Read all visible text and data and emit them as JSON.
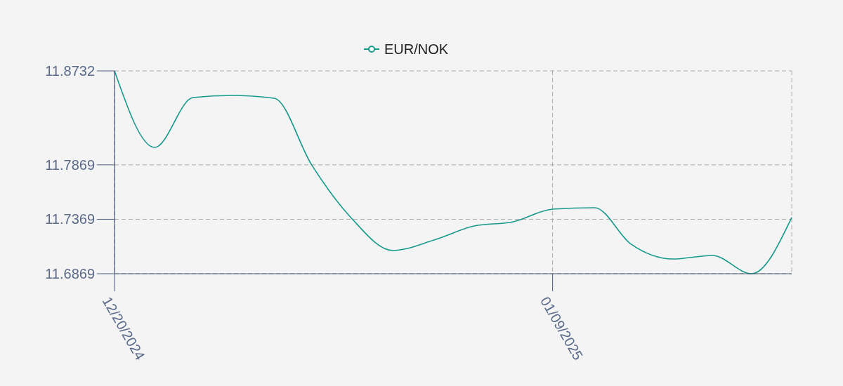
{
  "chart_data": {
    "type": "line",
    "x": [
      "2024-12-20",
      "2024-12-21T20:00",
      "2024-12-23T14:00",
      "2024-12-25T08:00",
      "2024-12-27T07:00",
      "2024-12-29T00:00",
      "2024-12-30T19:00",
      "2025-01-01T17:00",
      "2025-01-03T14:00",
      "2025-01-05T10:00",
      "2025-01-07T05:00",
      "2025-01-09T00:00",
      "2025-01-10T22:00",
      "2025-01-12T14:00",
      "2025-01-14T12:00",
      "2025-01-16T07:00",
      "2025-01-18T02:00",
      "2025-01-19T22:00"
    ],
    "series": [
      {
        "name": "EUR/NOK",
        "color": "#16998a",
        "values": [
          11.8732,
          11.8029,
          11.8487,
          11.8506,
          11.8481,
          11.7869,
          11.7385,
          11.7082,
          11.7178,
          11.7307,
          11.7346,
          11.7462,
          11.7475,
          11.714,
          11.7004,
          11.7037,
          11.6869,
          11.7385
        ]
      }
    ],
    "xlim": [
      "2024-12-20",
      "2025-01-19T22:00"
    ],
    "xticks": [
      {
        "value": "2024-12-20",
        "label": "12/20/2024"
      },
      {
        "value": "2025-01-09",
        "label": "01/09/2025"
      }
    ],
    "ylim": [
      11.6869,
      11.8732
    ],
    "yticks": [
      11.6869,
      11.7369,
      11.7869,
      11.8732
    ],
    "grid": true,
    "legend": "top",
    "marker": "none",
    "line_style": "solid"
  }
}
